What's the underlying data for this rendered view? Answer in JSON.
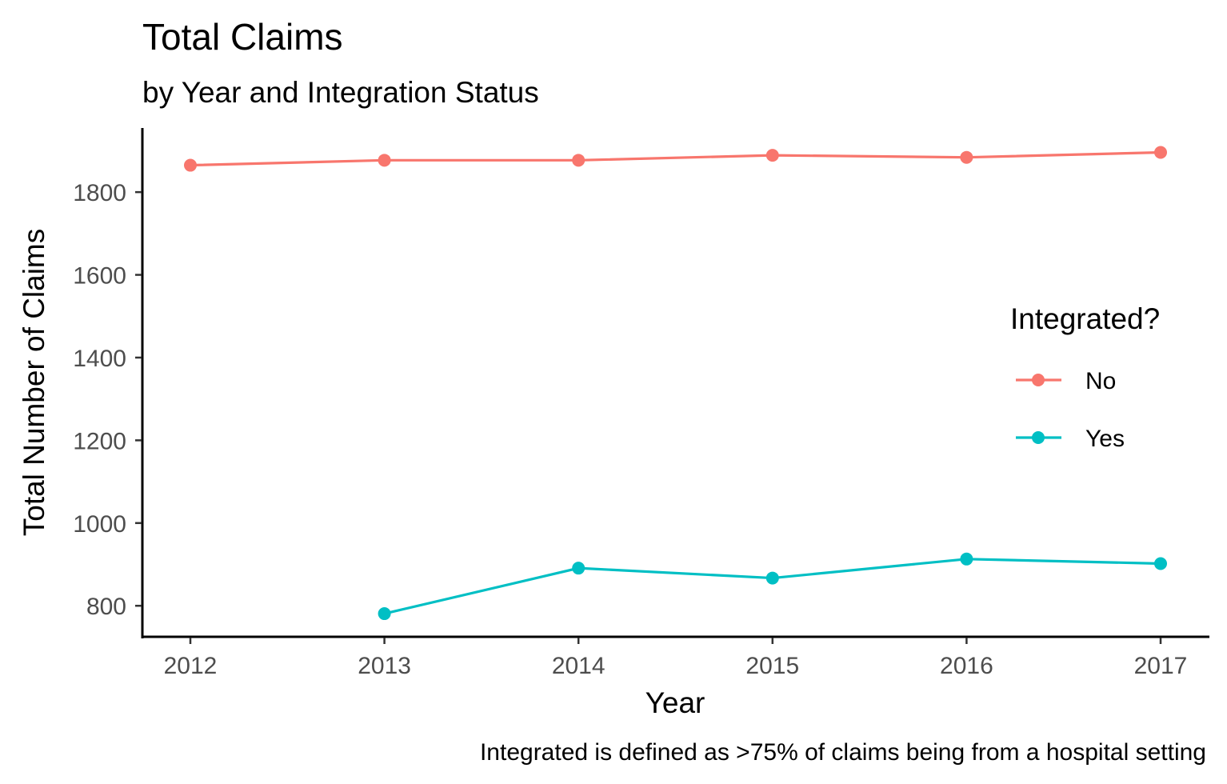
{
  "chart_data": {
    "type": "line",
    "title": "Total Claims",
    "subtitle": "by Year and Integration Status",
    "xlabel": "Year",
    "ylabel": "Total Number of Claims",
    "caption": "Integrated is defined as >75% of claims being from a hospital setting",
    "x": [
      2012,
      2013,
      2014,
      2015,
      2016,
      2017
    ],
    "xticks": [
      "2012",
      "2013",
      "2014",
      "2015",
      "2016",
      "2017"
    ],
    "yticks": [
      "800",
      "1000",
      "1200",
      "1400",
      "1600",
      "1800"
    ],
    "ylim": [
      725,
      1955
    ],
    "grid": false,
    "legend": {
      "title": "Integrated?",
      "position": "right",
      "entries": [
        "No",
        "Yes"
      ]
    },
    "series": [
      {
        "name": "No",
        "color": "#F8766D",
        "values": [
          1865,
          1877,
          1877,
          1889,
          1884,
          1896
        ]
      },
      {
        "name": "Yes",
        "color": "#00BFC4",
        "values": [
          null,
          781,
          891,
          867,
          913,
          902
        ]
      }
    ]
  }
}
